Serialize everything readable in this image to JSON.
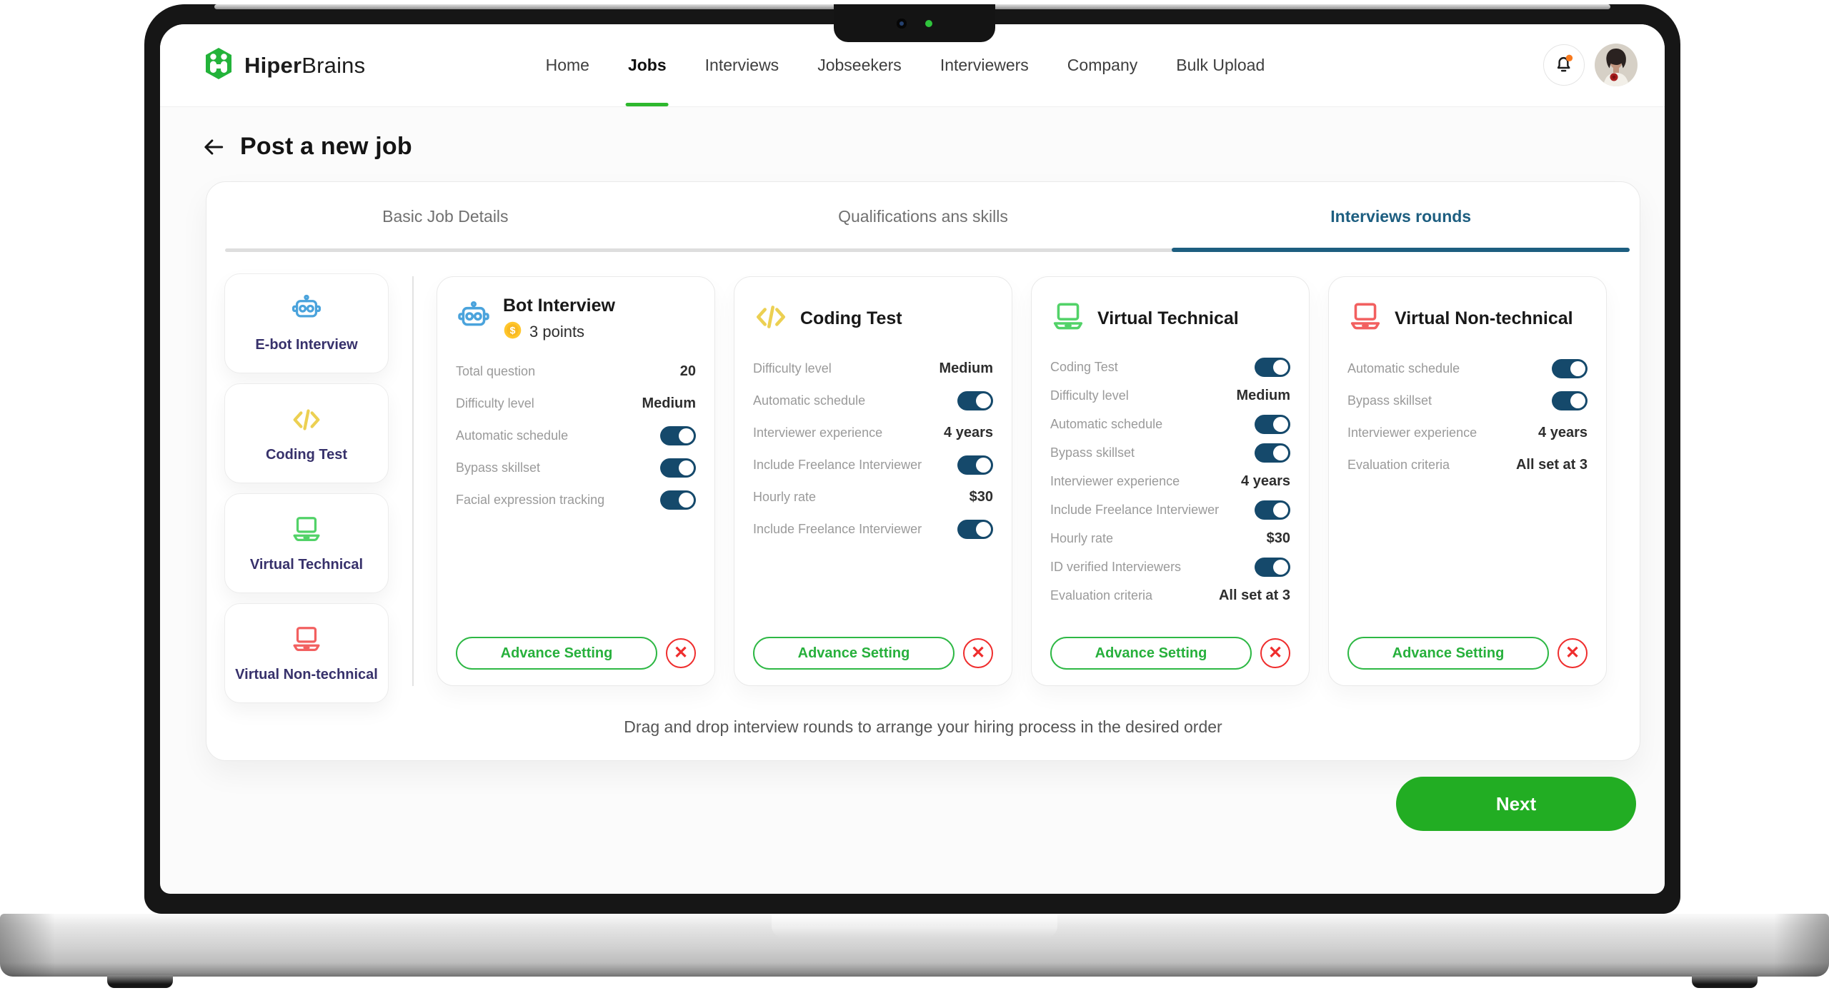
{
  "brand": {
    "name_bold": "Hiper",
    "name_light": "Brains",
    "logo_color": "#23b33a"
  },
  "nav": {
    "items": [
      {
        "label": "Home",
        "active": false
      },
      {
        "label": "Jobs",
        "active": true
      },
      {
        "label": "Interviews",
        "active": false
      },
      {
        "label": "Jobseekers",
        "active": false
      },
      {
        "label": "Interviewers",
        "active": false
      },
      {
        "label": "Company",
        "active": false
      },
      {
        "label": "Bulk Upload",
        "active": false
      }
    ],
    "active_underline_color": "#2eb82e"
  },
  "header_icons": {
    "notification_dot_color": "#f8791d"
  },
  "page": {
    "title": "Post a new job"
  },
  "tabs": {
    "items": [
      {
        "label": "Basic Job Details",
        "active": false
      },
      {
        "label": "Qualifications ans skills",
        "active": false
      },
      {
        "label": "Interviews rounds",
        "active": true
      }
    ],
    "active_color": "#1d5e80"
  },
  "sidebar_rounds": [
    {
      "label": "E-bot Interview",
      "icon": "robot-icon",
      "color": "#4aa3dc"
    },
    {
      "label": "Coding Test",
      "icon": "code-icon",
      "color": "#ecd052"
    },
    {
      "label": "Virtual Technical",
      "icon": "laptop-icon",
      "color": "#52d268"
    },
    {
      "label": "Virtual Non-technical",
      "icon": "laptop-icon",
      "color": "#f26060"
    }
  ],
  "cards": [
    {
      "title": "Bot Interview",
      "icon": "robot-icon",
      "icon_color": "#4aa3dc",
      "points": "3 points",
      "rows": [
        {
          "label": "Total question",
          "value": "20"
        },
        {
          "label": "Difficulty level",
          "value": "Medium"
        },
        {
          "label": "Automatic schedule",
          "toggle": true
        },
        {
          "label": "Bypass skillset",
          "toggle": true
        },
        {
          "label": "Facial expression tracking",
          "toggle": true
        }
      ]
    },
    {
      "title": "Coding Test",
      "icon": "code-icon",
      "icon_color": "#ecd052",
      "rows": [
        {
          "label": "Difficulty level",
          "value": "Medium"
        },
        {
          "label": "Automatic schedule",
          "toggle": true
        },
        {
          "label": "Interviewer experience",
          "value": "4 years"
        },
        {
          "label": "Include Freelance Interviewer",
          "toggle": true
        },
        {
          "label": "Hourly rate",
          "value": "$30"
        },
        {
          "label": "Include Freelance Interviewer",
          "toggle": true
        }
      ]
    },
    {
      "title": "Virtual Technical",
      "icon": "laptop-icon",
      "icon_color": "#52d268",
      "rows": [
        {
          "label": "Coding Test",
          "toggle": true
        },
        {
          "label": "Difficulty level",
          "value": "Medium"
        },
        {
          "label": "Automatic schedule",
          "toggle": true
        },
        {
          "label": "Bypass skillset",
          "toggle": true
        },
        {
          "label": "Interviewer experience",
          "value": "4 years"
        },
        {
          "label": "Include Freelance Interviewer",
          "toggle": true
        },
        {
          "label": "Hourly rate",
          "value": "$30"
        },
        {
          "label": "ID verified Interviewers",
          "toggle": true
        },
        {
          "label": "Evaluation criteria",
          "value": "All set at 3"
        }
      ]
    },
    {
      "title": "Virtual Non-technical",
      "icon": "laptop-icon",
      "icon_color": "#f26060",
      "rows": [
        {
          "label": "Automatic schedule",
          "toggle": true
        },
        {
          "label": "Bypass skillset",
          "toggle": true
        },
        {
          "label": "Interviewer experience",
          "value": "4 years"
        },
        {
          "label": "Evaluation criteria",
          "value": "All set at 3"
        }
      ]
    }
  ],
  "advance_button_label": "Advance Setting",
  "icons": {
    "close_glyph": "✕"
  },
  "drag_hint": "Drag and drop interview rounds to arrange your hiring process in the desired order",
  "next_button": "Next",
  "colors": {
    "toggle_on": "#15496b",
    "advance_green": "#2eb845",
    "remove_red": "#ef2d2d",
    "next_green": "#22ad23",
    "tab_active": "#1d5e80",
    "sidebar_text": "#37316b"
  }
}
